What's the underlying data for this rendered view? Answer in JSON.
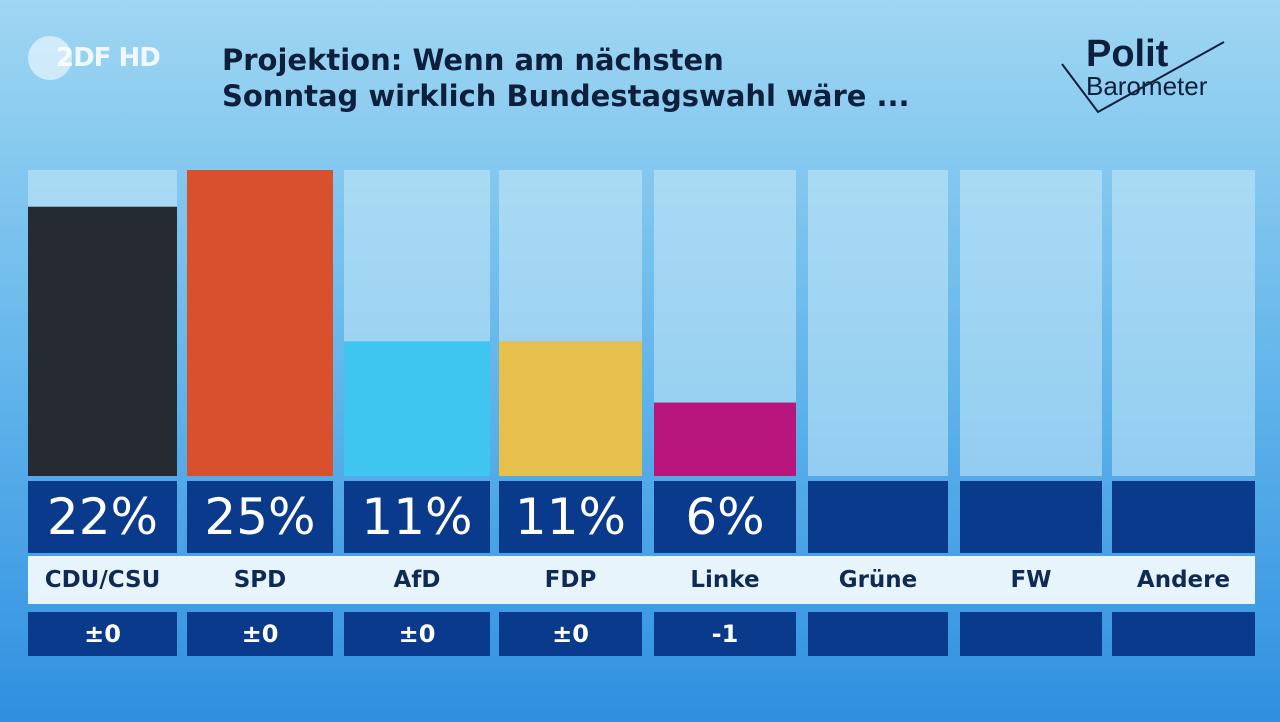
{
  "broadcaster": {
    "logo_text": "2DF HD"
  },
  "headline": {
    "line1": "Projektion: Wenn am nächsten",
    "line2": "Sonntag wirklich Bundestagswahl wäre ..."
  },
  "brand": {
    "line1": "Polit",
    "line2": "Barometer"
  },
  "colors": {
    "box_blue": "#0a3a8c",
    "track": "#c9e9f8"
  },
  "chart_data": {
    "type": "bar",
    "title": "Projektion: Wenn am nächsten Sonntag wirklich Bundestagswahl wäre ...",
    "categories": [
      "CDU/CSU",
      "SPD",
      "AfD",
      "FDP",
      "Linke",
      "Grüne",
      "FW",
      "Andere"
    ],
    "values": [
      22,
      25,
      11,
      11,
      6,
      null,
      null,
      null
    ],
    "value_labels": [
      "22%",
      "25%",
      "11%",
      "11%",
      "6%",
      "",
      "",
      ""
    ],
    "changes": [
      "±0",
      "±0",
      "±0",
      "±0",
      "-1",
      "",
      "",
      ""
    ],
    "bar_colors": [
      "#262a31",
      "#d8502c",
      "#3fc6f0",
      "#e6bf4c",
      "#b8167c",
      "#3fa04a",
      "#f0a028",
      "#9aa4ad"
    ],
    "ylim": [
      0,
      25
    ],
    "xlabel": "",
    "ylabel": ""
  }
}
